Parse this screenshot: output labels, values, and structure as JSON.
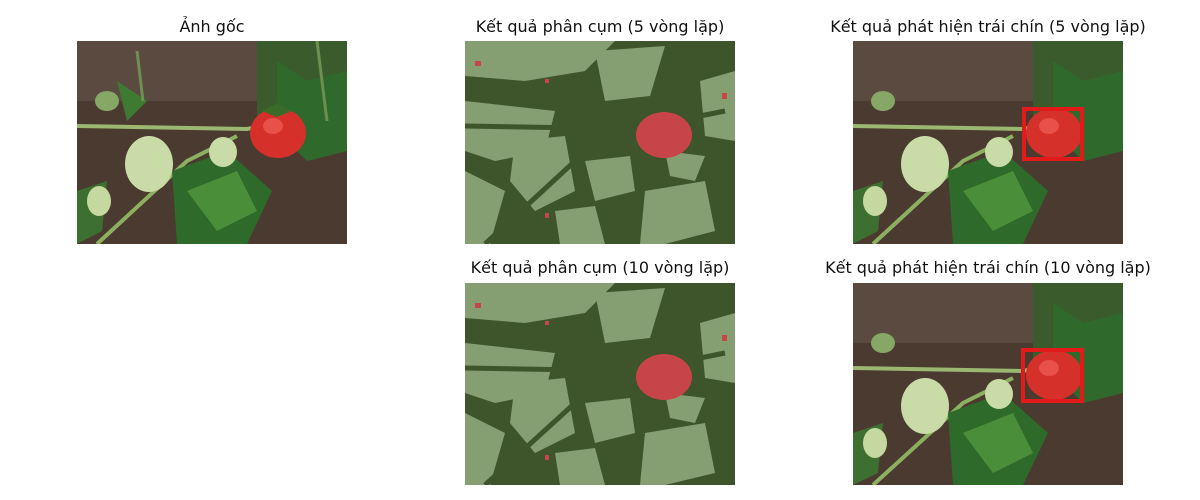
{
  "figure": {
    "panels": [
      {
        "id": "original",
        "title": "Ảnh gốc"
      },
      {
        "id": "cluster5",
        "title": "Kết quả phân cụm (5 vòng lặp)"
      },
      {
        "id": "detect5",
        "title": "Kết quả phát hiện trái chín (5 vòng lặp)"
      },
      {
        "id": "cluster10",
        "title": "Kết quả phân cụm (10 vòng lặp)"
      },
      {
        "id": "detect10",
        "title": "Kết quả phát hiện trái chín (10 vòng lặp)"
      }
    ]
  },
  "colors": {
    "cluster_dark": "#3e552c",
    "cluster_light": "#859e72",
    "cluster_red": "#c74448",
    "detection_box": "#e21a1a",
    "soil": "#4a3a30",
    "leaf": "#2f6a2c",
    "leaf_light": "#5a9a45",
    "berry_red": "#d6302b",
    "berry_green": "#c9dba6"
  }
}
